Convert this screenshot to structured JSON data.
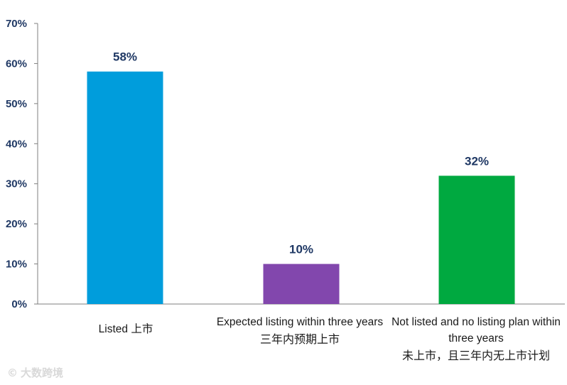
{
  "chart_data": {
    "type": "bar",
    "categories": [
      {
        "en": "Listed",
        "zh": "上市"
      },
      {
        "en": "Expected listing within three years",
        "zh": "三年内预期上市"
      },
      {
        "en": "Not listed and no listing plan within three years",
        "zh": "未上市，且三年内无上市计划"
      }
    ],
    "values": [
      58,
      10,
      32
    ],
    "data_labels": [
      "58%",
      "10%",
      "32%"
    ],
    "colors": [
      "#009ddc",
      "#8247ad",
      "#00a940"
    ],
    "ylim": [
      0,
      70
    ],
    "yticks": [
      "0%",
      "10%",
      "20%",
      "30%",
      "40%",
      "50%",
      "60%",
      "70%"
    ],
    "grid": false,
    "legend": "none"
  },
  "watermark": {
    "text": "大数跨境",
    "icon": "logo-icon"
  }
}
